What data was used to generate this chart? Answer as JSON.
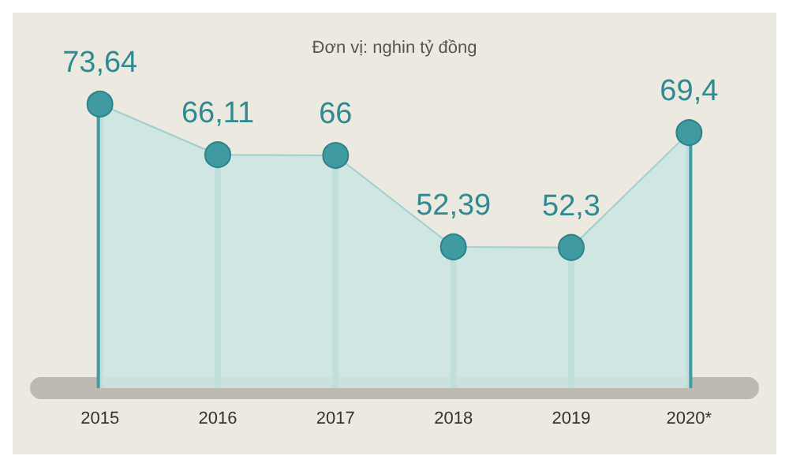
{
  "chart_data": {
    "type": "area",
    "subtitle": "Đơn vị: nghin tỷ đồng",
    "categories": [
      "2015",
      "2016",
      "2017",
      "2018",
      "2019",
      "2020*"
    ],
    "series": [
      {
        "color": "#3f9aa2",
        "values": [
          73.64,
          66.11,
          66,
          52.39,
          52.3,
          69.4
        ],
        "value_labels": [
          "73,64",
          "66,11",
          "66",
          "52,39",
          "52,3",
          "69,4"
        ]
      }
    ],
    "marker": "circle"
  }
}
